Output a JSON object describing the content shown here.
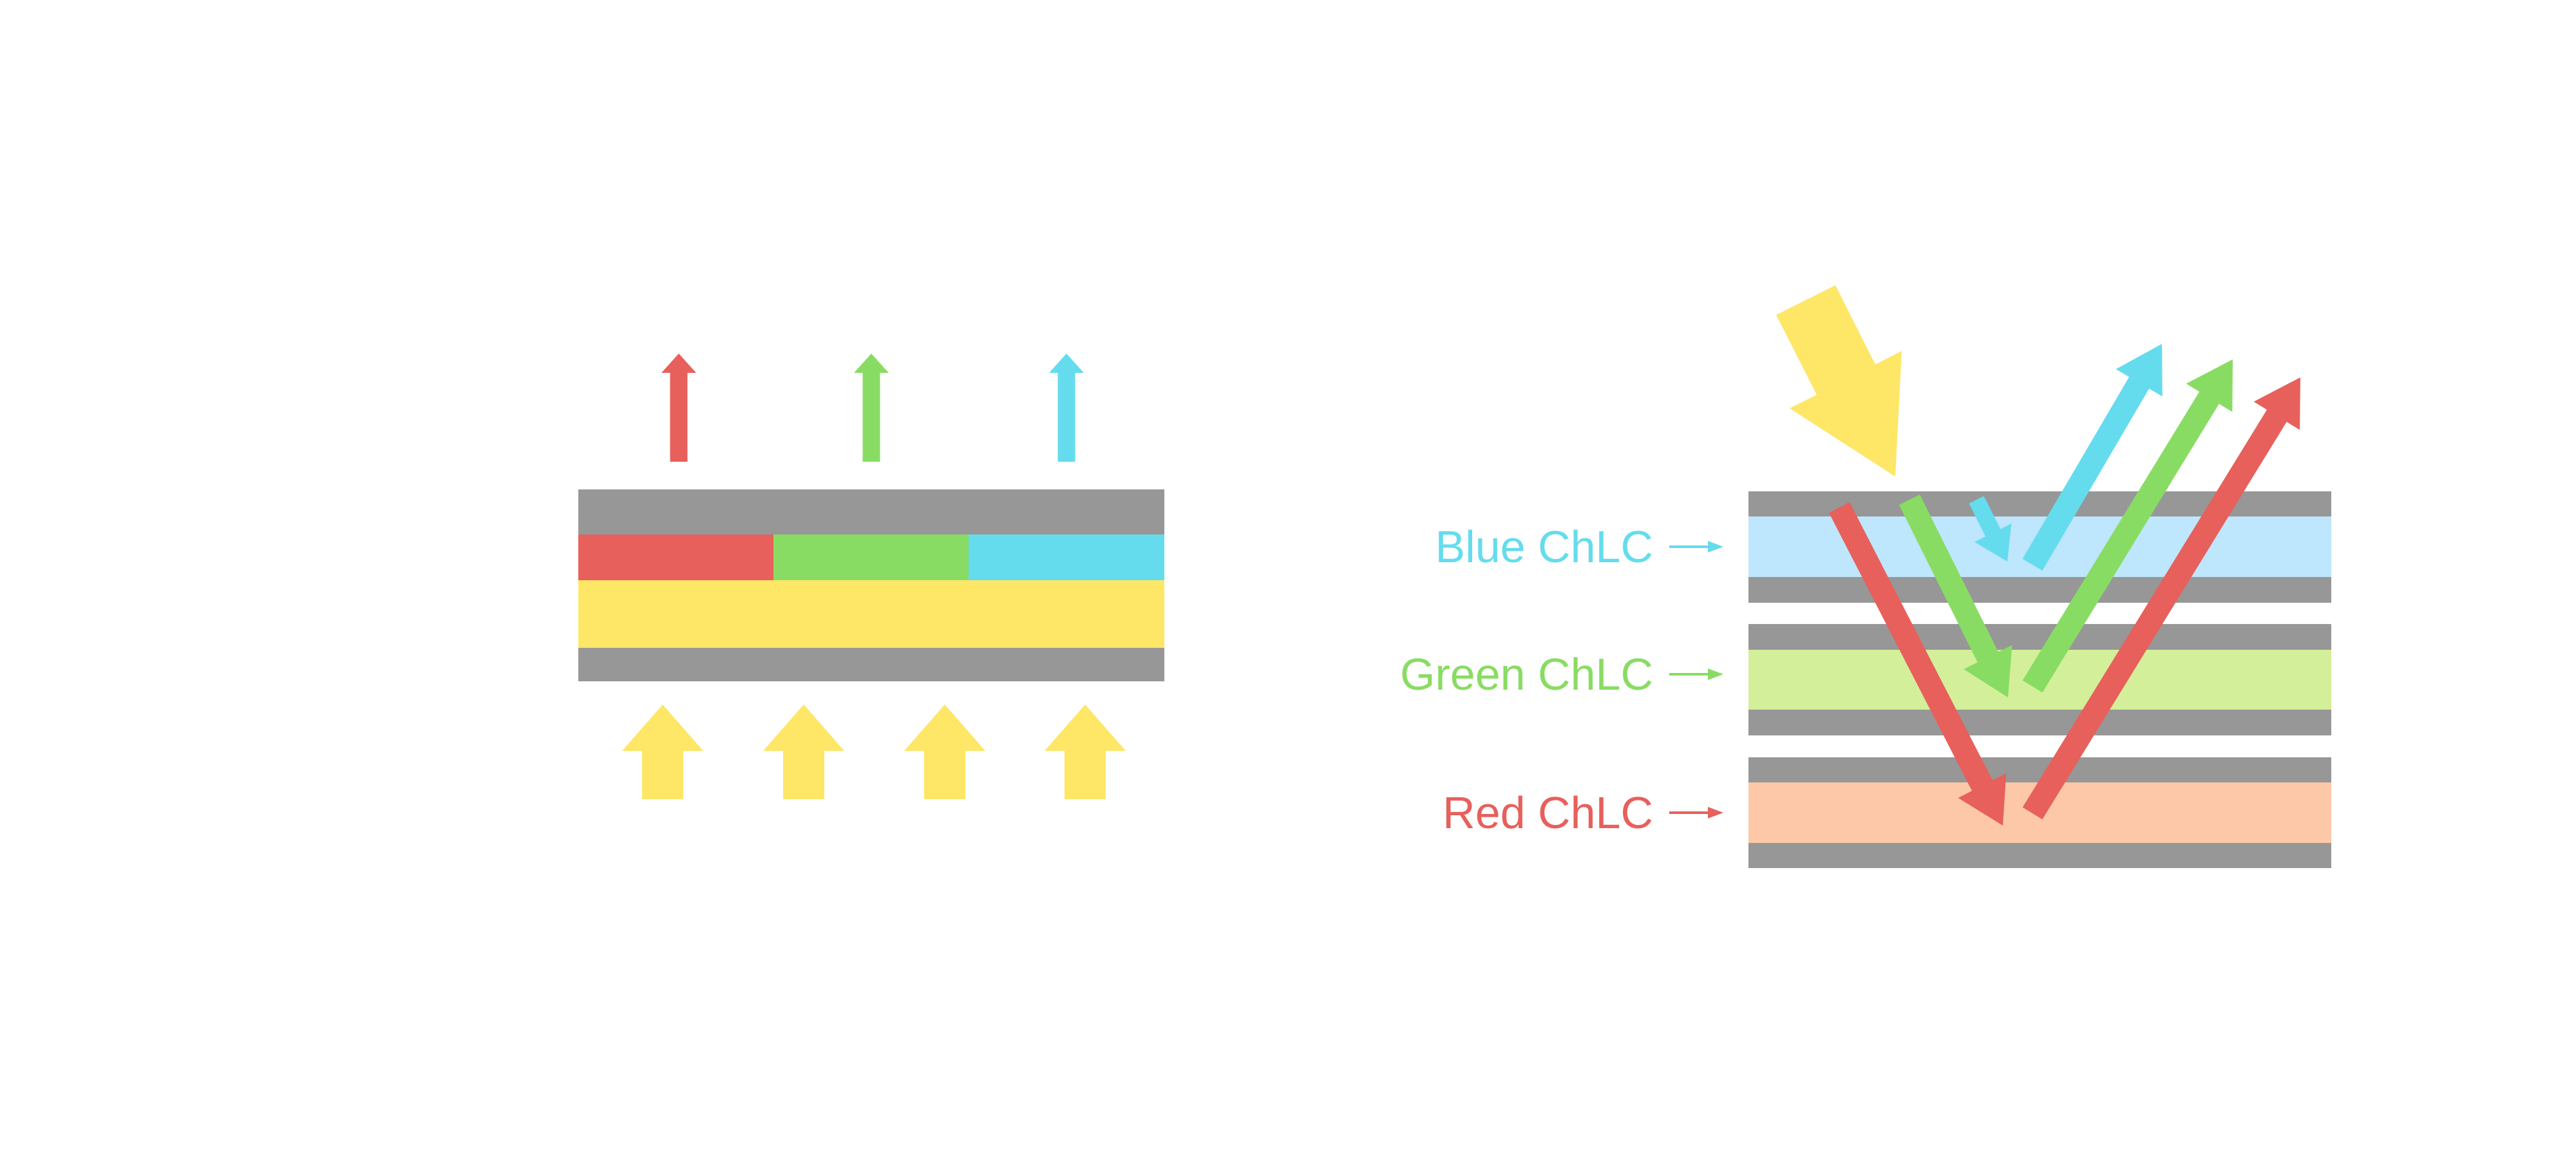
{
  "labels": {
    "blue": "Blue ChLC",
    "green": "Green ChLC",
    "red": "Red ChLC"
  },
  "colors": {
    "gray_layer": "#979797",
    "red": "#E7605B",
    "green": "#89DC63",
    "cyan": "#64DCEE",
    "yellow": "#FEE667",
    "blue_layer": "#BEE6FC",
    "green_layer": "#D3EF99",
    "red_layer": "#FDC8A8"
  }
}
